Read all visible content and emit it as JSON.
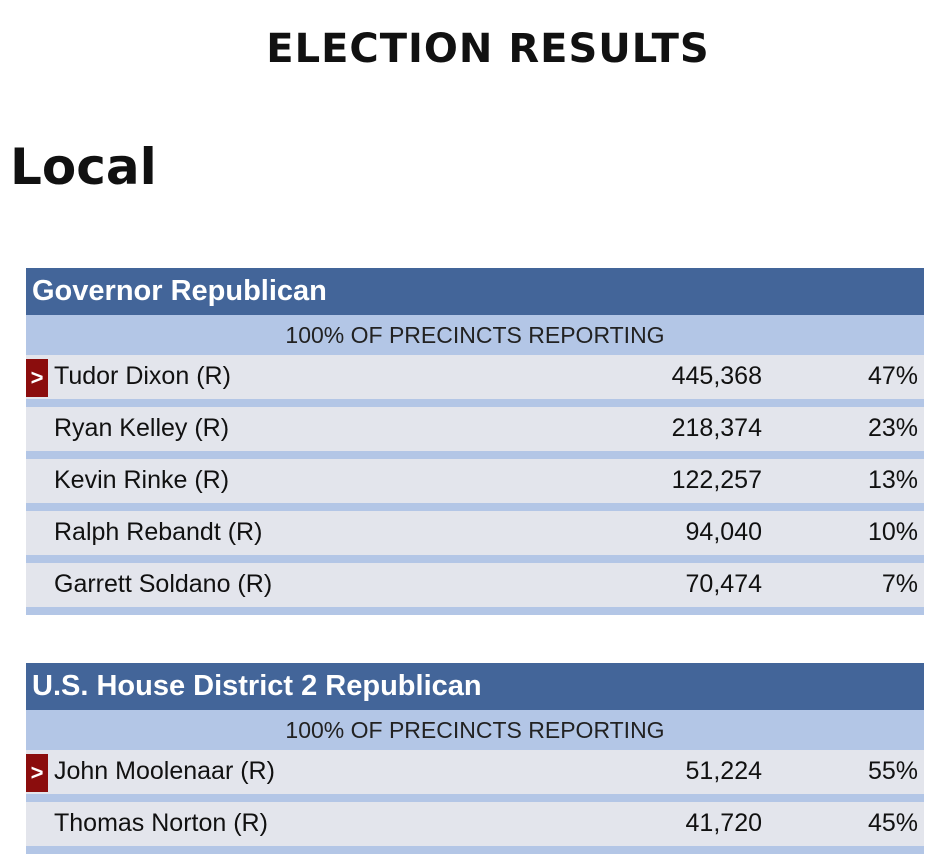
{
  "page_title": "ELECTION RESULTS",
  "section_heading": "Local",
  "races": [
    {
      "title": "Governor Republican",
      "precincts": "100% OF PRECINCTS REPORTING",
      "candidates": [
        {
          "name": "Tudor Dixon (R)",
          "votes": "445,368",
          "percent": "47%",
          "winner": true,
          "marker": ">"
        },
        {
          "name": "Ryan Kelley (R)",
          "votes": "218,374",
          "percent": "23%",
          "winner": false
        },
        {
          "name": "Kevin Rinke (R)",
          "votes": "122,257",
          "percent": "13%",
          "winner": false
        },
        {
          "name": "Ralph Rebandt (R)",
          "votes": "94,040",
          "percent": "10%",
          "winner": false
        },
        {
          "name": "Garrett Soldano (R)",
          "votes": "70,474",
          "percent": "7%",
          "winner": false
        }
      ]
    },
    {
      "title": "U.S. House District 2 Republican",
      "precincts": "100% OF PRECINCTS REPORTING",
      "candidates": [
        {
          "name": "John Moolenaar (R)",
          "votes": "51,224",
          "percent": "55%",
          "winner": true,
          "marker": ">"
        },
        {
          "name": "Thomas Norton (R)",
          "votes": "41,720",
          "percent": "45%",
          "winner": false
        }
      ]
    }
  ],
  "colors": {
    "header_bg": "#436599",
    "subheader_bg": "#b3c6e6",
    "row_bg": "#e3e5ec",
    "winner_marker_bg": "#8b0d0d"
  }
}
